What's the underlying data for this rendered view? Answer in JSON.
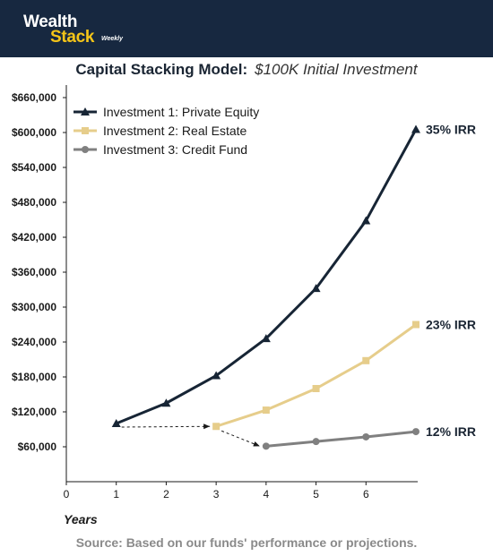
{
  "brand": {
    "line1": "Wealth",
    "line2": "Stack",
    "tag": "Weekly"
  },
  "title_main": "Capital Stacking Model:",
  "title_sub": "$100K Initial Investment",
  "source": "Source: Based on our funds' performance or projections.",
  "colors": {
    "header_bg": "#172840",
    "brand_accent": "#f5c518",
    "series_pe": "#172535",
    "series_re": "#e6cd8b",
    "series_cf": "#808080"
  },
  "chart_data": {
    "type": "line",
    "title": "Capital Stacking Model: $100K Initial Investment",
    "xlabel": "Years",
    "ylabel": "",
    "xlim": [
      0,
      7
    ],
    "ylim": [
      30000,
      660000
    ],
    "x_ticks": [
      0,
      1,
      2,
      3,
      4,
      5,
      6
    ],
    "y_ticks": [
      60000,
      120000,
      180000,
      240000,
      300000,
      360000,
      420000,
      480000,
      540000,
      600000,
      660000
    ],
    "y_tick_labels": [
      "$60,000",
      "$120,000",
      "$180,000",
      "$240,000",
      "$300,000",
      "$360,000",
      "$420,000",
      "$480,000",
      "$540,000",
      "$600,000",
      "$660,000"
    ],
    "grid": false,
    "legend_position": "top-left",
    "series": [
      {
        "name": "Investment 1: Private Equity",
        "marker": "triangle",
        "color": "#172535",
        "x": [
          1,
          2,
          3,
          4,
          5,
          6,
          7
        ],
        "values": [
          100000,
          135000,
          182250,
          246038,
          332151,
          448403,
          605344
        ],
        "end_label": "35% IRR"
      },
      {
        "name": "Investment 2: Real Estate",
        "marker": "square",
        "color": "#e6cd8b",
        "x": [
          3,
          4,
          5,
          6,
          7
        ],
        "values": [
          95000,
          123000,
          160000,
          208000,
          270000
        ],
        "end_label": "23% IRR"
      },
      {
        "name": "Investment 3: Credit Fund",
        "marker": "circle",
        "color": "#808080",
        "x": [
          4,
          5,
          6,
          7
        ],
        "values": [
          61000,
          69000,
          77000,
          86000
        ],
        "end_label": "12% IRR"
      }
    ],
    "transfers": [
      {
        "from": [
          1,
          100000
        ],
        "to": [
          3,
          95000
        ]
      },
      {
        "from": [
          3,
          95000
        ],
        "to": [
          4,
          61000
        ]
      }
    ]
  }
}
